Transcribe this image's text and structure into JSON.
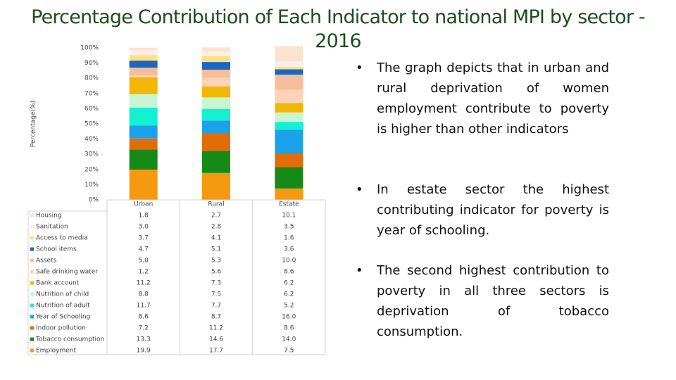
{
  "chart_data": {
    "type": "stacked-bar",
    "title": "Percentage Contribution of Each Indicator to national MPI by sector - 2016",
    "y_label": "Percentage(%)",
    "categories": [
      "Urban",
      "Rural",
      "Estate"
    ],
    "ylim": [
      0,
      100
    ],
    "yticks": [
      {
        "value": 0,
        "label": "0%"
      },
      {
        "value": 10,
        "label": "10%"
      },
      {
        "value": 20,
        "label": "20%"
      },
      {
        "value": 30,
        "label": "30%"
      },
      {
        "value": 40,
        "label": "40%"
      },
      {
        "value": 50,
        "label": "50%"
      },
      {
        "value": 60,
        "label": "60%"
      },
      {
        "value": 70,
        "label": "70%"
      },
      {
        "value": 80,
        "label": "80%"
      },
      {
        "value": 90,
        "label": "90%"
      },
      {
        "value": 100,
        "label": "100%"
      }
    ],
    "series": [
      {
        "name": "Housing",
        "color": "#fbe3d4",
        "values": [
          1.8,
          2.7,
          10.1
        ],
        "value_labels": [
          "1.8",
          "2.7",
          "10.1"
        ]
      },
      {
        "name": "Sanitation",
        "color": "#fdf0e6",
        "values": [
          3.0,
          2.8,
          3.5
        ],
        "value_labels": [
          "3.0",
          "2.8",
          "3.5"
        ]
      },
      {
        "name": "Access to media",
        "color": "#ffe082",
        "values": [
          3.7,
          4.1,
          1.6
        ],
        "value_labels": [
          "3.7",
          "4.1",
          "1.6"
        ]
      },
      {
        "name": "School items",
        "color": "#1a66c2",
        "values": [
          4.7,
          5.1,
          3.6
        ],
        "value_labels": [
          "4.7",
          "5.1",
          "3.6"
        ]
      },
      {
        "name": "Assets",
        "color": "#f7be9b",
        "values": [
          5.0,
          5.3,
          10.0
        ],
        "value_labels": [
          "5.0",
          "5.3",
          "10.0"
        ]
      },
      {
        "name": "Safe drinking water",
        "color": "#fbd3b8",
        "values": [
          1.2,
          5.6,
          8.6
        ],
        "value_labels": [
          "1.2",
          "5.6",
          "8.6"
        ]
      },
      {
        "name": "Bank account",
        "color": "#f2b705",
        "values": [
          11.2,
          7.3,
          6.2
        ],
        "value_labels": [
          "11.2",
          "7.3",
          "6.2"
        ]
      },
      {
        "name": "Nutrition of child",
        "color": "#c9f5d2",
        "values": [
          8.8,
          7.5,
          6.2
        ],
        "value_labels": [
          "8.8",
          "7.5",
          "6.2"
        ]
      },
      {
        "name": "Nutrition of adult",
        "color": "#14f0d2",
        "values": [
          11.7,
          7.7,
          5.2
        ],
        "value_labels": [
          "11.7",
          "7.7",
          "5.2"
        ]
      },
      {
        "name": "Year of Schooling",
        "color": "#1aa3ea",
        "values": [
          8.6,
          8.7,
          16.0
        ],
        "value_labels": [
          "8.6",
          "8.7",
          "16.0"
        ]
      },
      {
        "name": "Indoor pollution",
        "color": "#e36c0a",
        "values": [
          7.2,
          11.2,
          8.6
        ],
        "value_labels": [
          "7.2",
          "11.2",
          "8.6"
        ]
      },
      {
        "name": "Tobacco consumption",
        "color": "#168a16",
        "values": [
          13.3,
          14.6,
          14.0
        ],
        "value_labels": [
          "13.3",
          "14.6",
          "14.0"
        ]
      },
      {
        "name": "Employment",
        "color": "#f59a10",
        "values": [
          19.9,
          17.7,
          7.5
        ],
        "value_labels": [
          "19.9",
          "17.7",
          "7.5"
        ]
      }
    ]
  },
  "bullets": [
    "The graph depicts that in urban and rural deprivation of women employment contribute to poverty is higher than other indicators",
    "In estate sector the highest contributing indicator for poverty is year of schooling.",
    "The second highest contribution to poverty in all three sectors is deprivation of tobacco consumption."
  ]
}
